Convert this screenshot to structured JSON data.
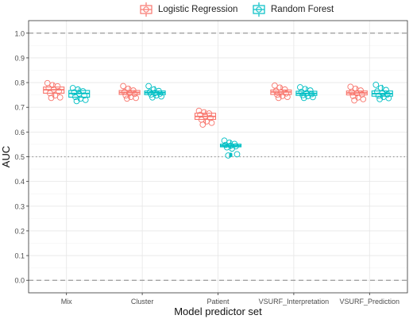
{
  "chart_data": {
    "type": "box",
    "xlabel": "Model predictor set",
    "ylabel": "AUC",
    "ylim": [
      0.0,
      1.0
    ],
    "yticks": [
      "0.0",
      "0.1",
      "0.2",
      "0.3",
      "0.4",
      "0.5",
      "0.6",
      "0.7",
      "0.8",
      "0.9",
      "1.0"
    ],
    "categories": [
      "Mix",
      "Cluster",
      "Patient",
      "VSURF_Interpretation",
      "VSURF_Prediction"
    ],
    "reference_lines": [
      {
        "y": 1.0,
        "style": "dashed"
      },
      {
        "y": 0.5,
        "style": "dotted"
      },
      {
        "y": 0.0,
        "style": "dashed"
      }
    ],
    "legend": {
      "position": "top"
    },
    "grid": true,
    "series": [
      {
        "name": "Logistic Regression",
        "color": "#F8766D",
        "boxes": [
          {
            "min": 0.738,
            "q1": 0.757,
            "median": 0.771,
            "q3": 0.782,
            "max": 0.798,
            "points": [
              0.798,
              0.79,
              0.785,
              0.778,
              0.772,
              0.765,
              0.757,
              0.748,
              0.74,
              0.738
            ]
          },
          {
            "min": 0.735,
            "q1": 0.752,
            "median": 0.76,
            "q3": 0.768,
            "max": 0.786,
            "points": [
              0.786,
              0.775,
              0.768,
              0.762,
              0.758,
              0.754,
              0.748,
              0.742,
              0.738,
              0.735
            ]
          },
          {
            "min": 0.63,
            "q1": 0.651,
            "median": 0.663,
            "q3": 0.676,
            "max": 0.686,
            "points": [
              0.686,
              0.68,
              0.675,
              0.67,
              0.664,
              0.657,
              0.65,
              0.643,
              0.637,
              0.63
            ]
          },
          {
            "min": 0.738,
            "q1": 0.752,
            "median": 0.762,
            "q3": 0.77,
            "max": 0.788,
            "points": [
              0.788,
              0.78,
              0.772,
              0.766,
              0.761,
              0.756,
              0.751,
              0.746,
              0.742,
              0.738
            ]
          },
          {
            "min": 0.728,
            "q1": 0.75,
            "median": 0.758,
            "q3": 0.766,
            "max": 0.783,
            "points": [
              0.783,
              0.775,
              0.768,
              0.762,
              0.757,
              0.752,
              0.746,
              0.74,
              0.733,
              0.728
            ]
          }
        ]
      },
      {
        "name": "Random Forest",
        "color": "#00BFC4",
        "boxes": [
          {
            "min": 0.725,
            "q1": 0.741,
            "median": 0.756,
            "q3": 0.768,
            "max": 0.778,
            "points": [
              0.778,
              0.772,
              0.765,
              0.76,
              0.755,
              0.748,
              0.742,
              0.735,
              0.73,
              0.725
            ]
          },
          {
            "min": 0.74,
            "q1": 0.751,
            "median": 0.759,
            "q3": 0.766,
            "max": 0.786,
            "points": [
              0.786,
              0.772,
              0.766,
              0.762,
              0.758,
              0.755,
              0.752,
              0.748,
              0.744,
              0.74
            ]
          },
          {
            "min": 0.53,
            "q1": 0.54,
            "median": 0.545,
            "q3": 0.551,
            "max": 0.565,
            "points": [
              0.565,
              0.557,
              0.552,
              0.548,
              0.545,
              0.542,
              0.538,
              0.533,
              0.51,
              0.505
            ],
            "outliers": [
              0.51,
              0.505
            ]
          },
          {
            "min": 0.738,
            "q1": 0.748,
            "median": 0.756,
            "q3": 0.765,
            "max": 0.781,
            "points": [
              0.781,
              0.774,
              0.768,
              0.762,
              0.757,
              0.753,
              0.749,
              0.745,
              0.741,
              0.738
            ]
          },
          {
            "min": 0.733,
            "q1": 0.745,
            "median": 0.755,
            "q3": 0.766,
            "max": 0.791,
            "points": [
              0.791,
              0.778,
              0.77,
              0.764,
              0.758,
              0.752,
              0.747,
              0.742,
              0.737,
              0.733
            ]
          }
        ]
      }
    ]
  }
}
